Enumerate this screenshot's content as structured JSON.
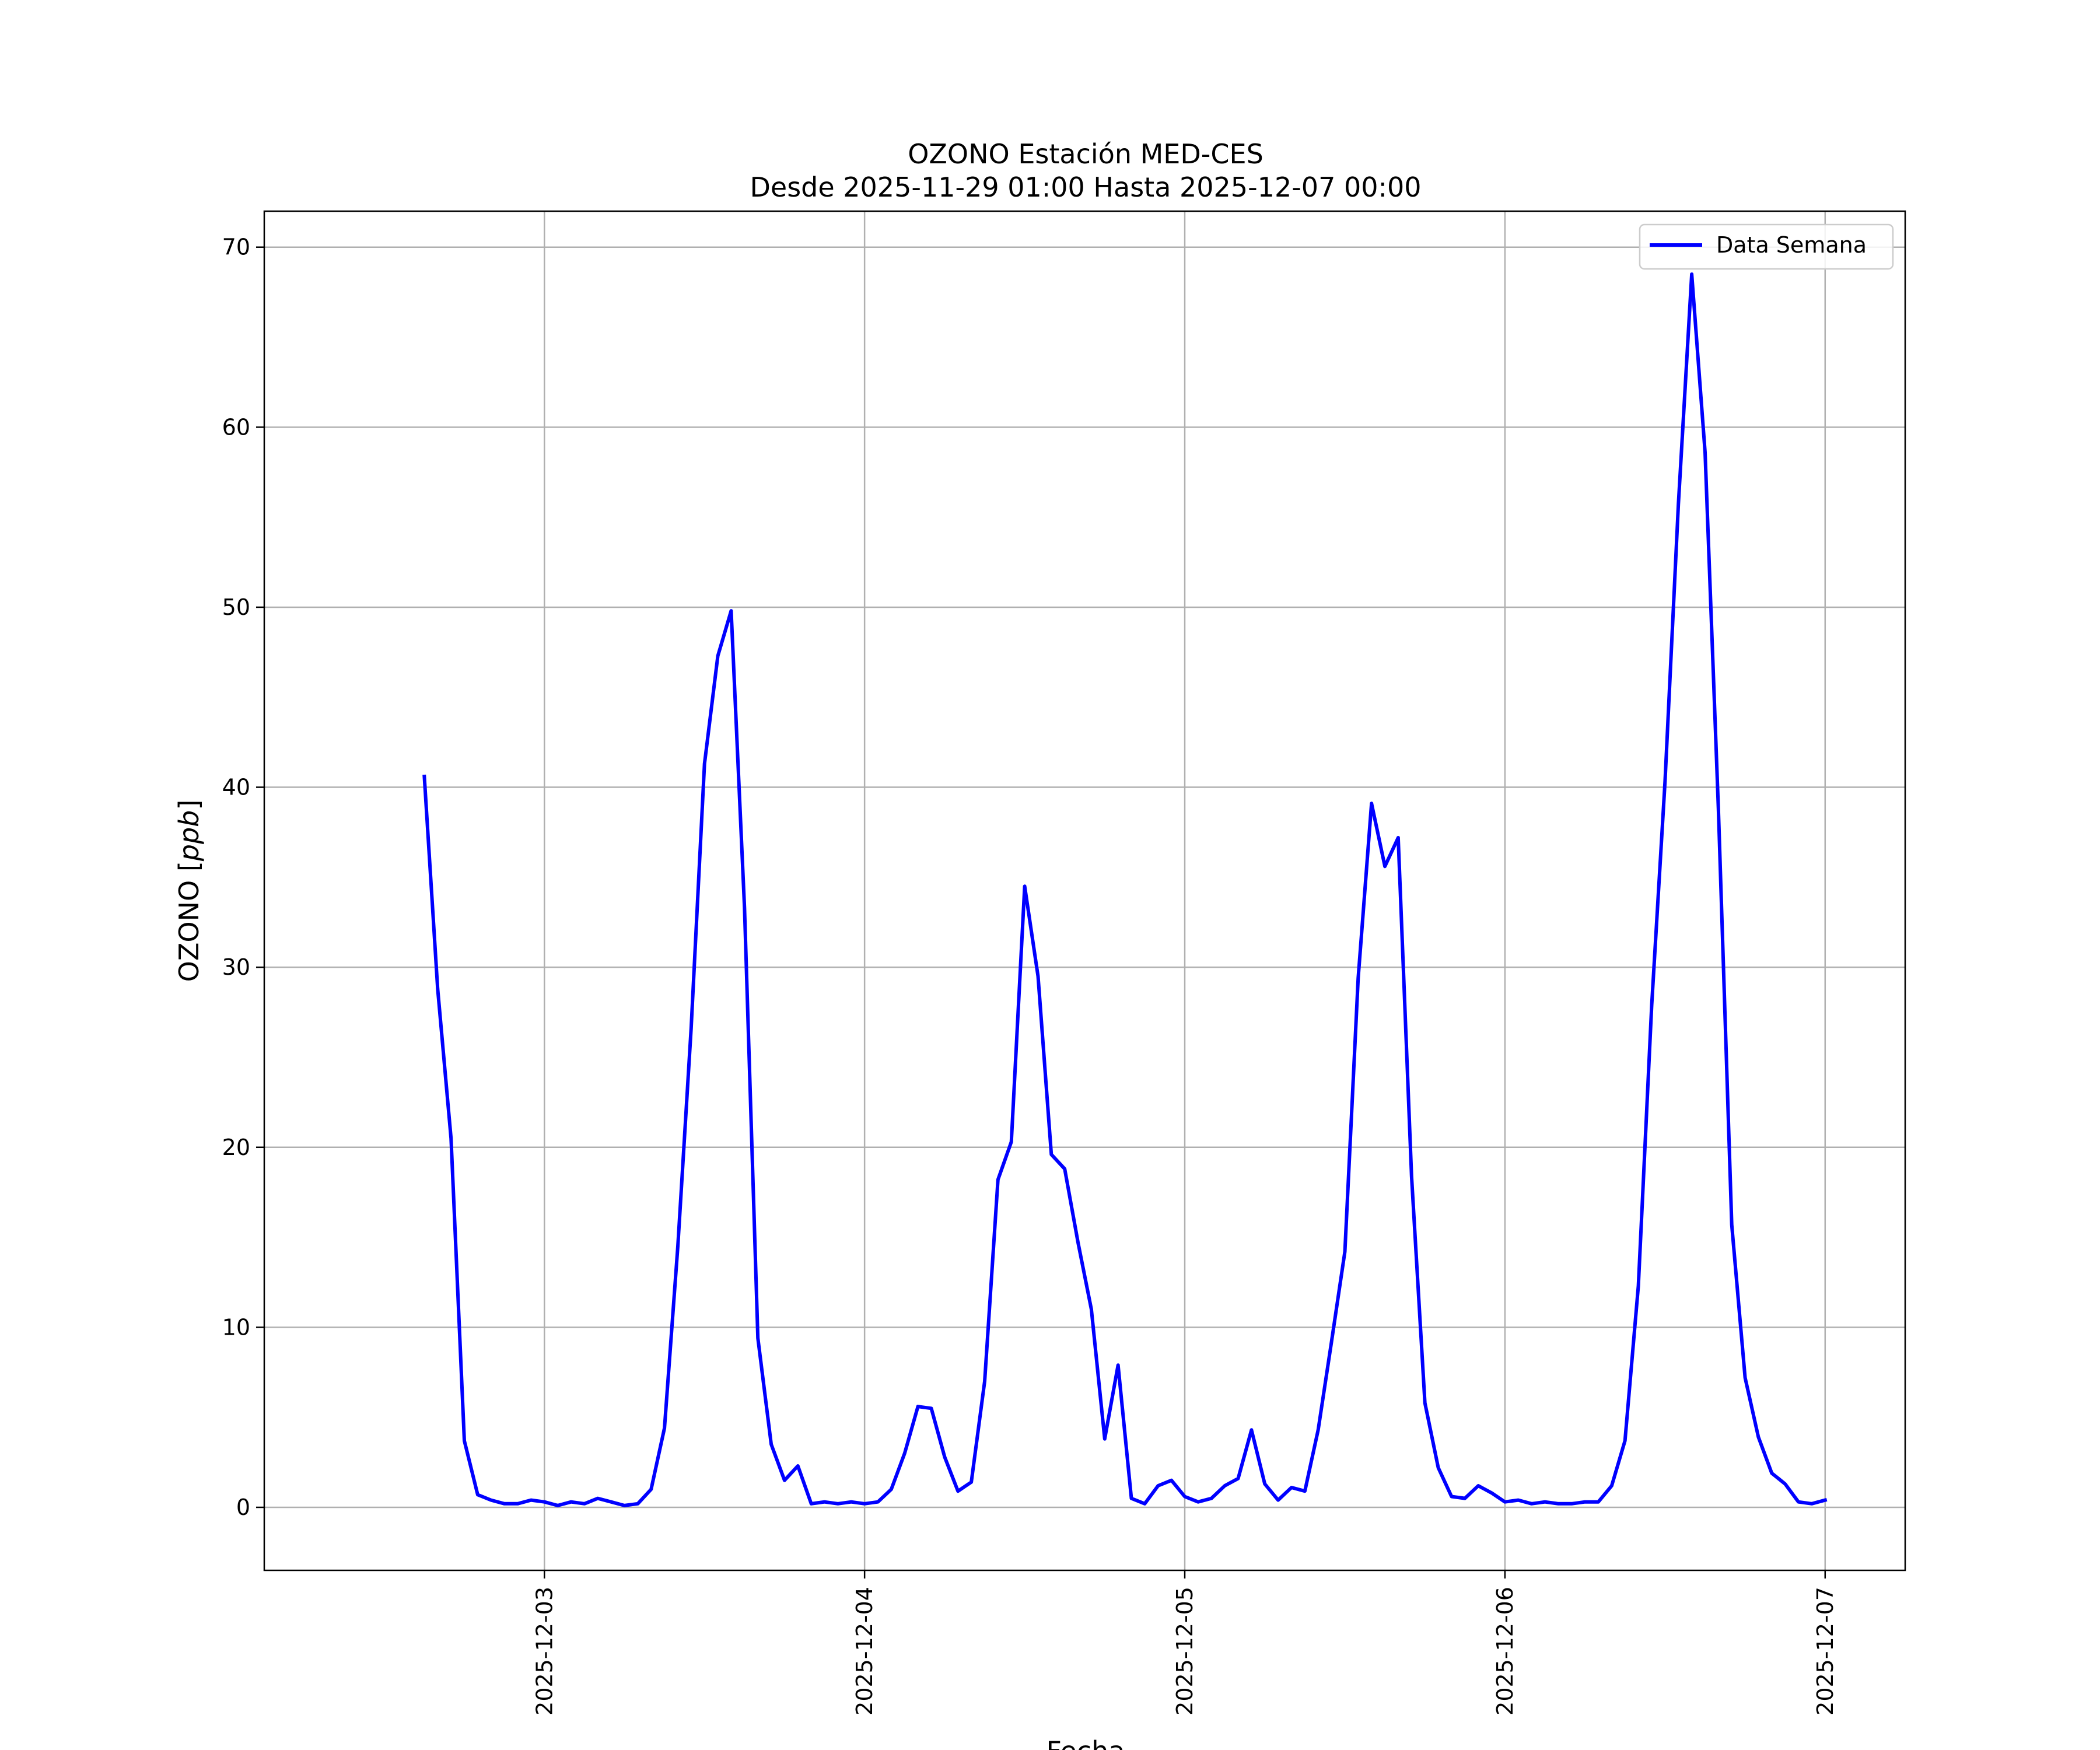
{
  "chart_data": {
    "type": "line",
    "title": "OZONO Estación MED-CES",
    "subtitle": "Desde 2025-11-29 01:00 Hasta 2025-12-07 00:00",
    "xlabel": "Fecha",
    "ylabel_text": "OZONO [",
    "ylabel_unit": "ppb",
    "ylabel_close": "]",
    "xlim": [
      "2025-12-02T03:00",
      "2025-12-07T06:00"
    ],
    "ylim": [
      -3.5,
      72
    ],
    "x_ticks": [
      "2025-12-03",
      "2025-12-04",
      "2025-12-05",
      "2025-12-06",
      "2025-12-07"
    ],
    "y_ticks": [
      0,
      10,
      20,
      30,
      40,
      50,
      60,
      70
    ],
    "grid": true,
    "legend_position": "top-right",
    "x_start": "2025-12-02T15:00",
    "x_step_hours": 1,
    "series": [
      {
        "name": "Data Semana",
        "color": "#0000ff",
        "values": [
          40.6,
          28.8,
          20.5,
          3.7,
          0.7,
          0.4,
          0.2,
          0.2,
          0.4,
          0.3,
          0.1,
          0.3,
          0.2,
          0.5,
          0.3,
          0.1,
          0.2,
          1.0,
          4.4,
          14.5,
          26.6,
          41.3,
          47.3,
          49.8,
          33.3,
          9.4,
          3.5,
          1.5,
          2.3,
          0.2,
          0.3,
          0.2,
          0.3,
          0.2,
          0.3,
          1.0,
          3.0,
          5.6,
          5.5,
          2.8,
          0.9,
          1.4,
          7.0,
          18.2,
          20.3,
          34.5,
          29.5,
          19.6,
          18.8,
          14.7,
          11.0,
          3.8,
          7.9,
          0.5,
          0.2,
          1.2,
          1.5,
          0.6,
          0.3,
          0.5,
          1.2,
          1.6,
          4.3,
          1.3,
          0.4,
          1.1,
          0.9,
          4.3,
          9.2,
          14.2,
          29.4,
          39.1,
          35.6,
          37.2,
          18.4,
          5.8,
          2.2,
          0.6,
          0.5,
          1.2,
          0.8,
          0.3,
          0.4,
          0.2,
          0.3,
          0.2,
          0.2,
          0.3,
          0.3,
          1.2,
          3.7,
          12.3,
          27.9,
          40.3,
          55.7,
          68.5,
          58.6,
          38.8,
          15.7,
          7.2,
          3.9,
          1.9,
          1.3,
          0.3,
          0.2,
          0.4
        ]
      }
    ]
  }
}
